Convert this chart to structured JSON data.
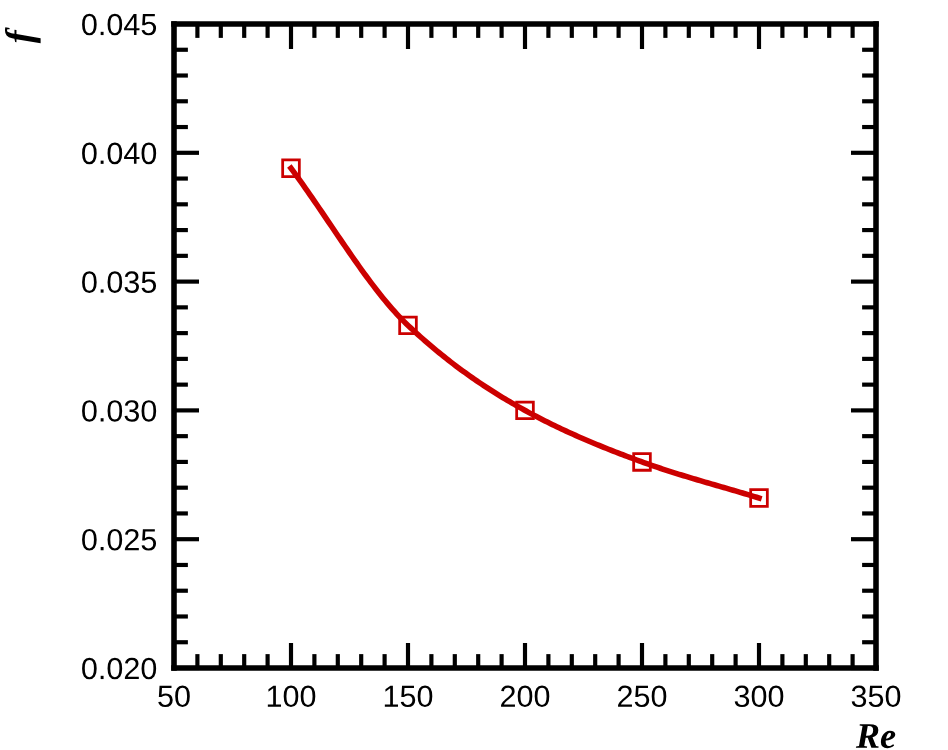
{
  "chart_data": {
    "type": "line",
    "xlabel": "Re",
    "ylabel": "f",
    "x": [
      100,
      150,
      200,
      250,
      300
    ],
    "series": [
      {
        "color": "#cc0000",
        "values": [
          0.0394,
          0.0333,
          0.03,
          0.028,
          0.0266
        ]
      }
    ],
    "xlim": [
      50,
      350
    ],
    "xticks": [
      50,
      100,
      150,
      200,
      250,
      300,
      350
    ],
    "ylim": [
      0.02,
      0.045
    ],
    "yticks": [
      {
        "value": 0.02,
        "label": "0.020"
      },
      {
        "value": 0.025,
        "label": "0.025"
      },
      {
        "value": 0.03,
        "label": "0.030"
      },
      {
        "value": 0.035,
        "label": "0.035"
      },
      {
        "value": 0.04,
        "label": "0.040"
      },
      {
        "value": 0.045,
        "label": "0.045"
      }
    ],
    "marker": "square",
    "line_style": "solid",
    "grid": false,
    "legend": false
  }
}
